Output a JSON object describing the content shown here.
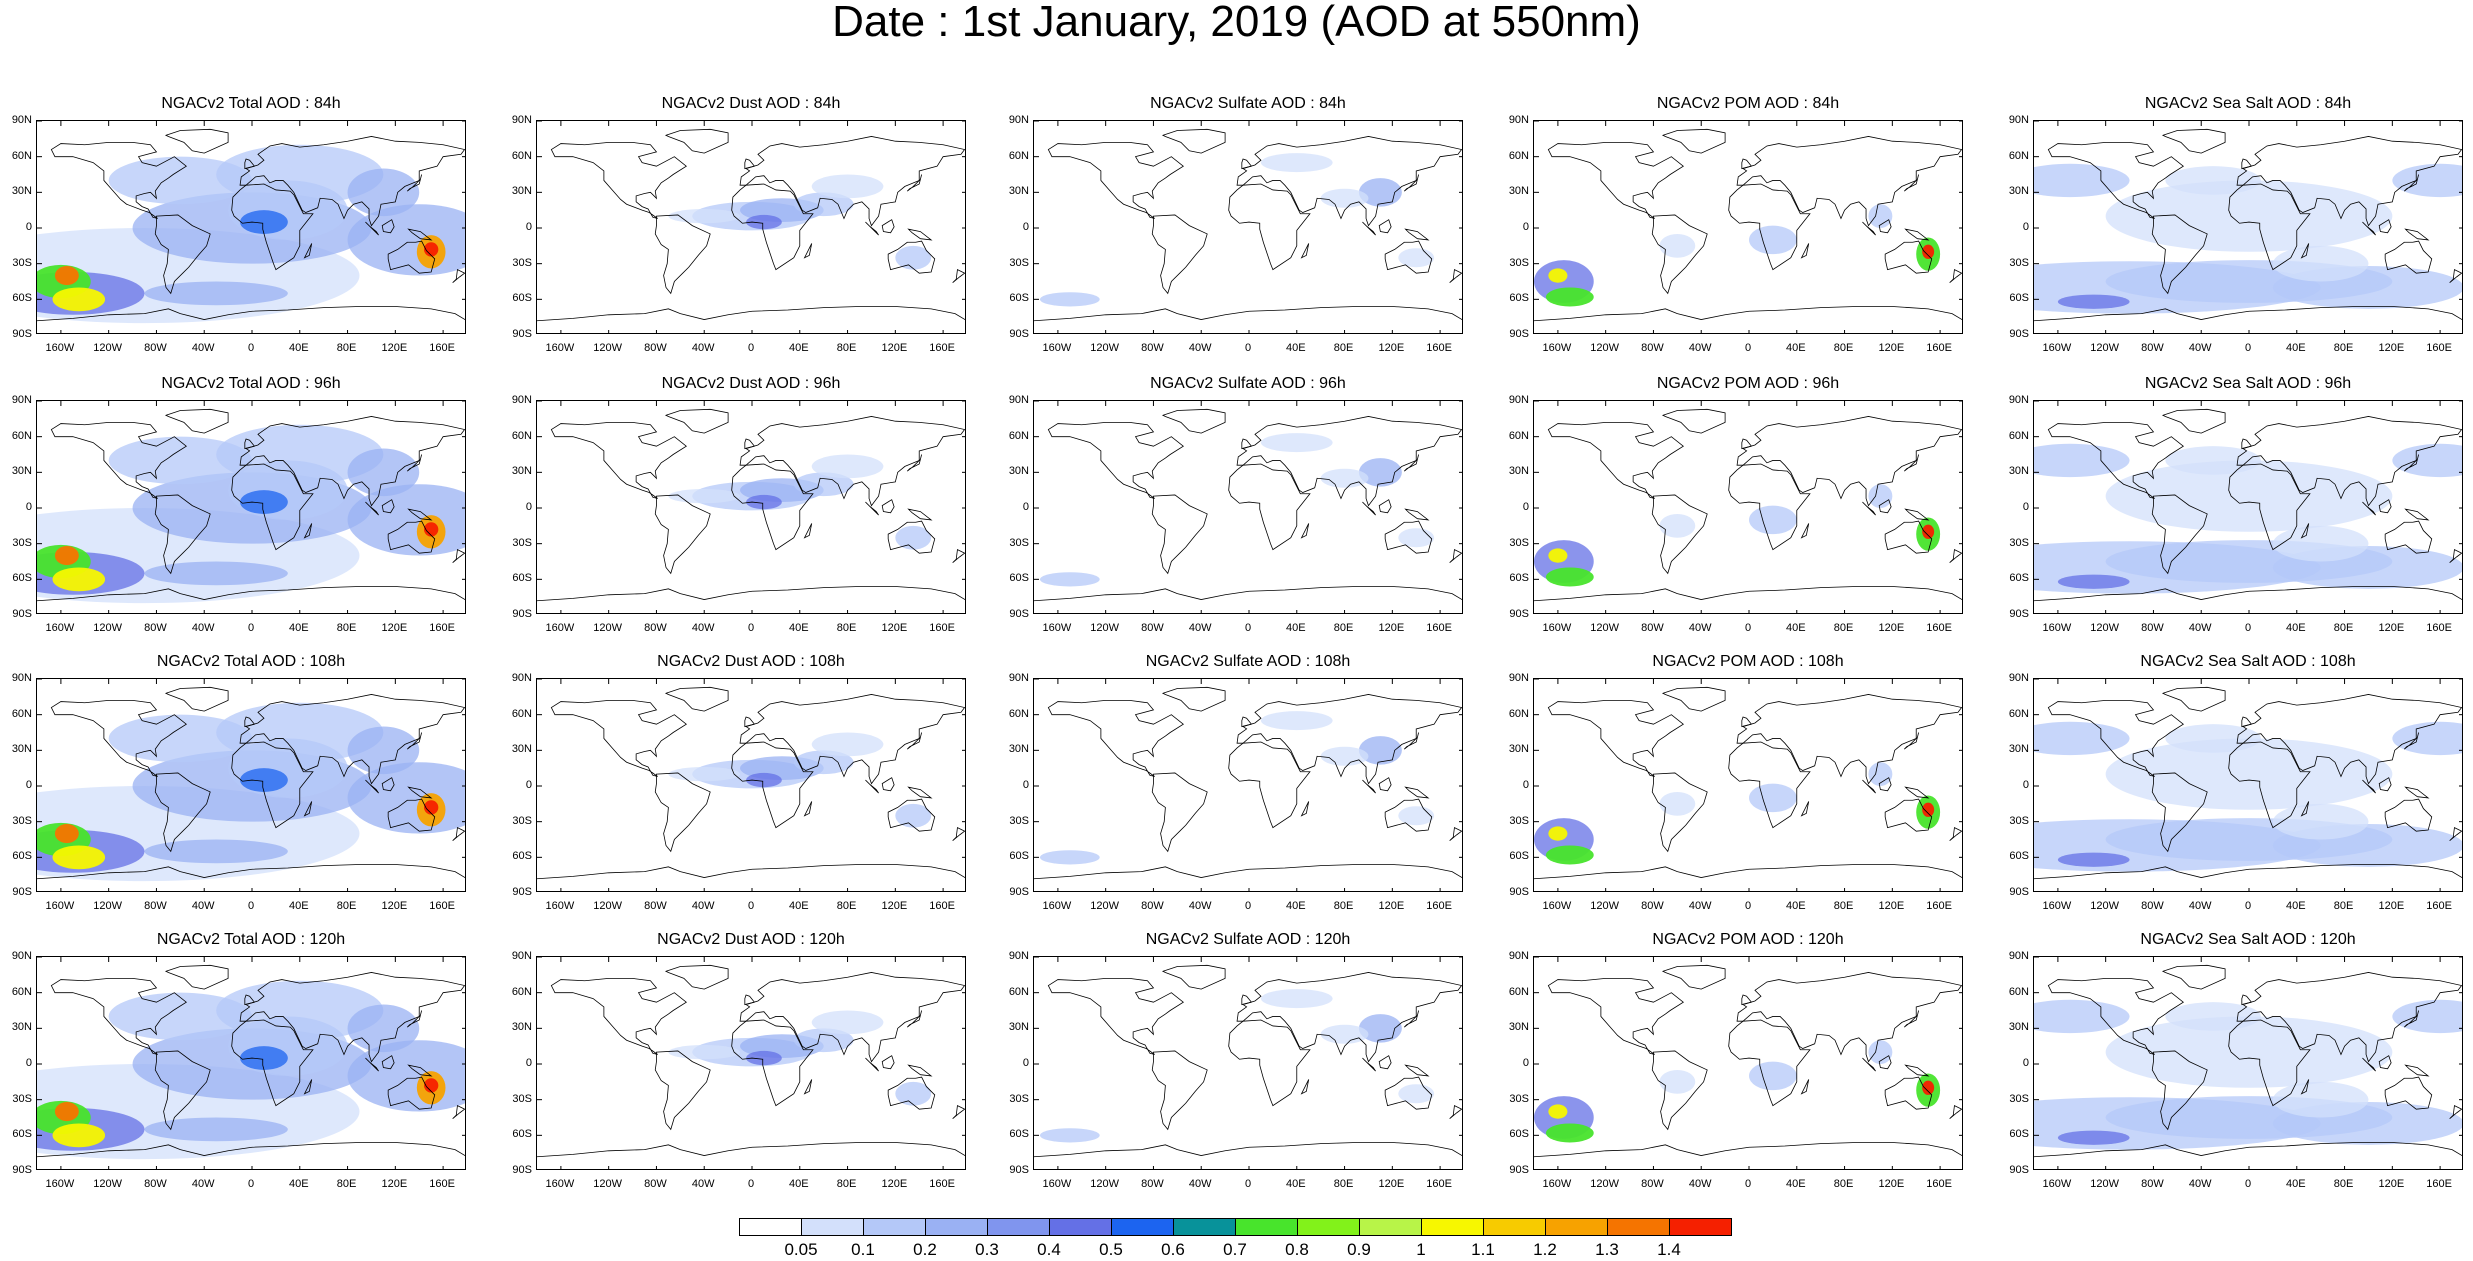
{
  "title": "Date : 1st January, 2019 (AOD at 550nm)",
  "lat_ticks": [
    "90N",
    "60N",
    "30N",
    "0",
    "30S",
    "60S",
    "90S"
  ],
  "lon_ticks": [
    "160W",
    "120W",
    "80W",
    "40W",
    "0",
    "40E",
    "80E",
    "120E",
    "160E"
  ],
  "rows": [
    {
      "forecast_hour": "84h",
      "panels": [
        {
          "title": "NGACv2 Total AOD : 84h",
          "species": "total"
        },
        {
          "title": "NGACv2 Dust AOD : 84h",
          "species": "dust"
        },
        {
          "title": "NGACv2 Sulfate AOD : 84h",
          "species": "sulfate"
        },
        {
          "title": "NGACv2 POM AOD : 84h",
          "species": "pom"
        },
        {
          "title": "NGACv2 Sea Salt AOD : 84h",
          "species": "seasalt"
        }
      ]
    },
    {
      "forecast_hour": "96h",
      "panels": [
        {
          "title": "NGACv2 Total AOD : 96h",
          "species": "total"
        },
        {
          "title": "NGACv2 Dust AOD : 96h",
          "species": "dust"
        },
        {
          "title": "NGACv2 Sulfate AOD : 96h",
          "species": "sulfate"
        },
        {
          "title": "NGACv2 POM AOD : 96h",
          "species": "pom"
        },
        {
          "title": "NGACv2 Sea Salt AOD : 96h",
          "species": "seasalt"
        }
      ]
    },
    {
      "forecast_hour": "108h",
      "panels": [
        {
          "title": "NGACv2 Total AOD : 108h",
          "species": "total"
        },
        {
          "title": "NGACv2 Dust AOD : 108h",
          "species": "dust"
        },
        {
          "title": "NGACv2 Sulfate AOD : 108h",
          "species": "sulfate"
        },
        {
          "title": "NGACv2 POM AOD : 108h",
          "species": "pom"
        },
        {
          "title": "NGACv2 Sea Salt AOD : 108h",
          "species": "seasalt"
        }
      ]
    },
    {
      "forecast_hour": "120h",
      "panels": [
        {
          "title": "NGACv2 Total AOD : 120h",
          "species": "total"
        },
        {
          "title": "NGACv2 Dust AOD : 120h",
          "species": "dust"
        },
        {
          "title": "NGACv2 Sulfate AOD : 120h",
          "species": "sulfate"
        },
        {
          "title": "NGACv2 POM AOD : 120h",
          "species": "pom"
        },
        {
          "title": "NGACv2 Sea Salt  AOD : 120h",
          "species": "seasalt"
        }
      ]
    }
  ],
  "colorbar": {
    "labels": [
      "0.05",
      "0.1",
      "0.2",
      "0.3",
      "0.4",
      "0.5",
      "0.6",
      "0.7",
      "0.8",
      "0.9",
      "1",
      "1.1",
      "1.2",
      "1.3",
      "1.4"
    ],
    "colors": [
      "#ffffff",
      "#d3e0fb",
      "#b4c8f8",
      "#9ab1f3",
      "#8095ee",
      "#6470e6",
      "#1c64f0",
      "#08929a",
      "#48e42c",
      "#82f21a",
      "#b8f448",
      "#f7f700",
      "#f7cb00",
      "#f7a200",
      "#f57400",
      "#f52000"
    ]
  },
  "palette": {
    "coast": "#000000",
    "low": "#d3e0fb",
    "mid": "#9ab1f3",
    "high": "#6470e6"
  }
}
